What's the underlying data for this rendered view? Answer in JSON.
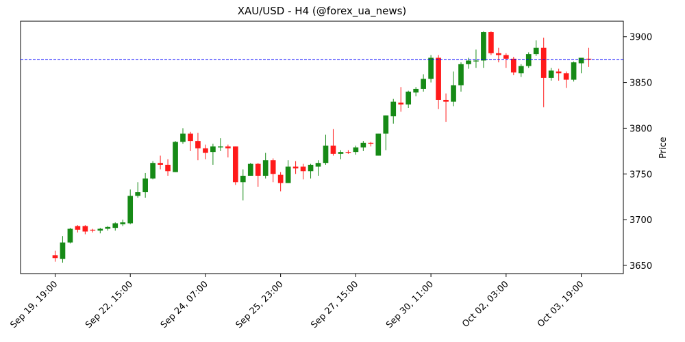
{
  "chart_data": {
    "type": "candlestick",
    "title": "XAU/USD - H4 (@forex_ua_news)",
    "ylabel": "Price",
    "categories": [
      "Sep 19, 19:00",
      null,
      null,
      null,
      null,
      null,
      null,
      null,
      null,
      null,
      "Sep 22, 15:00",
      null,
      null,
      null,
      null,
      null,
      null,
      null,
      null,
      null,
      "Sep 24, 07:00",
      null,
      null,
      null,
      null,
      null,
      null,
      null,
      null,
      null,
      "Sep 25, 23:00",
      null,
      null,
      null,
      null,
      null,
      null,
      null,
      null,
      null,
      "Sep 27, 15:00",
      null,
      null,
      null,
      null,
      null,
      null,
      null,
      null,
      null,
      "Sep 30, 11:00",
      null,
      null,
      null,
      null,
      null,
      null,
      null,
      null,
      null,
      "Oct 02, 03:00",
      null,
      null,
      null,
      null,
      null,
      null,
      null,
      null,
      null,
      "Oct 03, 19:00",
      null
    ],
    "open": [
      3661,
      3657,
      3675,
      3693,
      3693,
      3689,
      3688,
      3690,
      3691,
      3695,
      3696,
      3726,
      3730,
      3745,
      3762,
      3760,
      3752,
      3785,
      3794,
      3786,
      3778,
      3774,
      3779,
      3780,
      3780,
      3741,
      3748,
      3761,
      3748,
      3765,
      3749,
      3740,
      3758,
      3758,
      3753,
      3758,
      3762,
      3781,
      3772,
      3774,
      3774,
      3779,
      3784,
      3770,
      3794,
      3813,
      3828,
      3826,
      3839,
      3843,
      3854,
      3877,
      3831,
      3829,
      3847,
      3870,
      3873,
      3874,
      3905,
      3882,
      3880,
      3876,
      3860,
      3868,
      3881,
      3888,
      3855,
      3862,
      3860,
      3853,
      3871,
      3876
    ],
    "high": [
      3666,
      3682,
      3691,
      3694,
      3694,
      3690,
      3691,
      3693,
      3697,
      3700,
      3733,
      3741,
      3751,
      3764,
      3770,
      3766,
      3786,
      3800,
      3796,
      3795,
      3782,
      3783,
      3789,
      3782,
      3780,
      3755,
      3762,
      3762,
      3773,
      3767,
      3752,
      3765,
      3764,
      3761,
      3761,
      3765,
      3793,
      3799,
      3776,
      3776,
      3781,
      3786,
      3785,
      3794,
      3814,
      3832,
      3845,
      3841,
      3845,
      3859,
      3880,
      3880,
      3838,
      3862,
      3872,
      3877,
      3886,
      3906,
      3906,
      3888,
      3882,
      3878,
      3870,
      3883,
      3896,
      3899,
      3866,
      3865,
      3862,
      3873,
      3877,
      3888
    ],
    "low": [
      3654,
      3653,
      3674,
      3686,
      3684,
      3686,
      3685,
      3688,
      3688,
      3693,
      3695,
      3724,
      3724,
      3744,
      3755,
      3748,
      3752,
      3783,
      3775,
      3765,
      3766,
      3760,
      3775,
      3768,
      3738,
      3721,
      3748,
      3736,
      3745,
      3741,
      3731,
      3740,
      3750,
      3744,
      3745,
      3748,
      3760,
      3770,
      3766,
      3772,
      3771,
      3775,
      3780,
      3770,
      3776,
      3805,
      3818,
      3822,
      3835,
      3840,
      3850,
      3821,
      3807,
      3824,
      3840,
      3865,
      3866,
      3866,
      3880,
      3872,
      3866,
      3858,
      3856,
      3866,
      3879,
      3823,
      3852,
      3852,
      3844,
      3851,
      3860,
      3867
    ],
    "close": [
      3658,
      3675,
      3690,
      3689,
      3687,
      3688,
      3690,
      3692,
      3696,
      3697,
      3726,
      3730,
      3745,
      3762,
      3760,
      3753,
      3785,
      3794,
      3786,
      3778,
      3773,
      3780,
      3780,
      3778,
      3741,
      3748,
      3761,
      3748,
      3765,
      3750,
      3740,
      3758,
      3756,
      3753,
      3760,
      3762,
      3781,
      3772,
      3774,
      3773,
      3779,
      3784,
      3783,
      3794,
      3814,
      3829,
      3826,
      3840,
      3843,
      3854,
      3877,
      3831,
      3829,
      3847,
      3870,
      3874,
      3874,
      3905,
      3882,
      3880,
      3876,
      3861,
      3868,
      3881,
      3888,
      3855,
      3863,
      3860,
      3853,
      3872,
      3877,
      3875
    ],
    "up_color": "#168a16",
    "down_color": "#ff1a1a",
    "hline": 3875,
    "hline_color": "#0000ff",
    "ylim": [
      3641,
      3917
    ],
    "yticks": [
      3650,
      3700,
      3750,
      3800,
      3850,
      3900
    ],
    "yaxis_side": "right"
  }
}
